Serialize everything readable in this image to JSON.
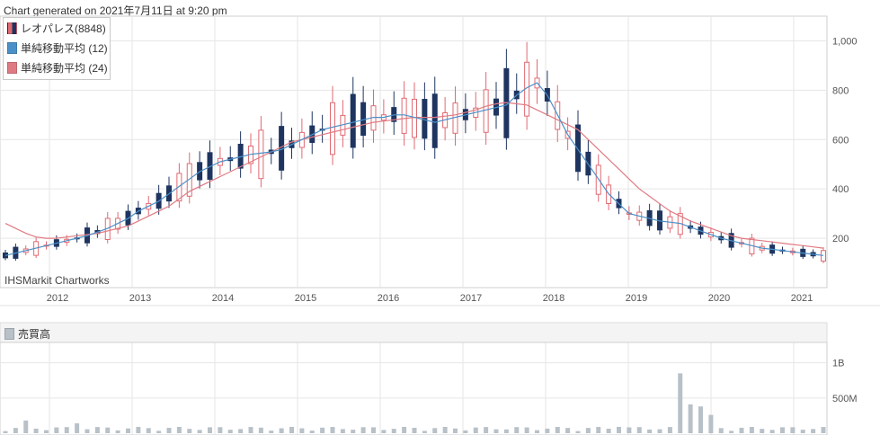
{
  "header": {
    "generated": "Chart generated on 2021年7月11日 at 9:20 pm"
  },
  "legend": [
    {
      "label": "レオパレス(8848)",
      "kind": "candles",
      "color": "#1f3560"
    },
    {
      "label": "単純移動平均 (12)",
      "kind": "line",
      "color": "#4a90c8"
    },
    {
      "label": "単純移動平均 (24)",
      "kind": "line",
      "color": "#e07a82"
    }
  ],
  "watermark": "IHSMarkit Chartworks",
  "volume_title": "売買高",
  "colors": {
    "up": "#e06a72",
    "down": "#1f3560",
    "ma12": "#4a90c8",
    "ma24": "#e07a82",
    "volume": "#b8c1c8",
    "grid": "#e6e6e6"
  },
  "chart_data": [
    {
      "type": "candlestick",
      "title": "レオパレス(8848)",
      "x_tick_labels": [
        "2012",
        "2013",
        "2014",
        "2015",
        "2016",
        "2017",
        "2018",
        "2019",
        "2020",
        "2021"
      ],
      "y_tick_labels": [
        "200",
        "400",
        "600",
        "800",
        "1,000"
      ],
      "ylim": [
        0,
        1100
      ],
      "series": [
        {
          "name": "単純移動平均 (12)",
          "type": "line",
          "values": [
            130,
            140,
            150,
            160,
            170,
            180,
            190,
            200,
            210,
            225,
            240,
            260,
            280,
            310,
            330,
            350,
            380,
            410,
            440,
            470,
            490,
            510,
            520,
            530,
            540,
            545,
            550,
            560,
            580,
            600,
            620,
            640,
            650,
            660,
            670,
            680,
            690,
            690,
            700,
            700,
            690,
            680,
            670,
            680,
            690,
            700,
            710,
            720,
            730,
            740,
            780,
            810,
            830,
            780,
            700,
            620,
            560,
            500,
            440,
            380,
            340,
            300,
            290,
            280,
            270,
            265,
            260,
            245,
            230,
            215,
            200,
            190,
            180,
            170,
            160,
            155,
            150,
            145,
            140,
            135,
            130
          ]
        },
        {
          "name": "単純移動平均 (24)",
          "type": "line",
          "values": [
            260,
            240,
            220,
            205,
            200,
            200,
            205,
            210,
            215,
            220,
            230,
            240,
            250,
            270,
            290,
            310,
            330,
            360,
            390,
            410,
            430,
            450,
            470,
            490,
            510,
            530,
            550,
            570,
            590,
            600,
            610,
            620,
            630,
            640,
            650,
            660,
            670,
            675,
            680,
            685,
            690,
            690,
            690,
            695,
            700,
            710,
            720,
            735,
            745,
            750,
            745,
            740,
            720,
            700,
            680,
            660,
            640,
            600,
            560,
            520,
            480,
            440,
            400,
            370,
            340,
            310,
            290,
            270,
            255,
            240,
            225,
            210,
            200,
            195,
            190,
            185,
            180,
            175,
            170,
            165,
            160
          ]
        }
      ]
    },
    {
      "type": "bar",
      "title": "売買高",
      "y_tick_labels": [
        "500M",
        "1B"
      ],
      "ylim": [
        0,
        1200
      ],
      "peak_value": 850
    }
  ]
}
